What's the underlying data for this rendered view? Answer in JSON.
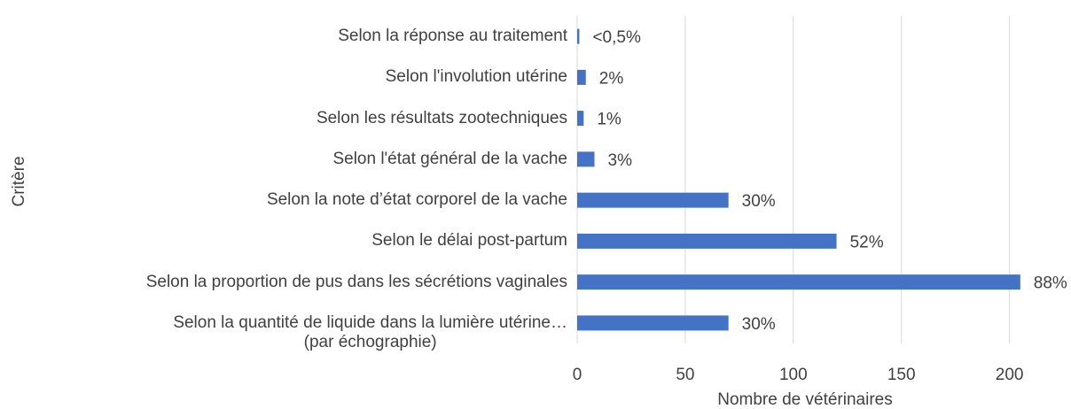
{
  "chart_data": {
    "type": "bar",
    "orientation": "horizontal",
    "x_label": "Nombre de vétérinaires",
    "y_label": "Critère",
    "categories": [
      "Selon la réponse au traitement",
      "Selon l'involution utérine",
      "Selon les résultats zootechniques",
      "Selon l'état général de la vache",
      "Selon la note d’état corporel de la vache",
      "Selon le délai post-partum",
      "Selon la proportion de pus dans les sécrétions vaginales",
      "Selon la quantité de liquide dans la lumière utérine…\n(par échographie)"
    ],
    "values": [
      1,
      4,
      3,
      8,
      70,
      120,
      205,
      70
    ],
    "value_labels": [
      "<0,5%",
      "2%",
      "1%",
      "3%",
      "30%",
      "52%",
      "88%",
      "30%"
    ],
    "color": "#4472c4",
    "xlim": [
      0,
      210
    ],
    "xticks": [
      0,
      50,
      100,
      150,
      200
    ],
    "grid": true
  }
}
